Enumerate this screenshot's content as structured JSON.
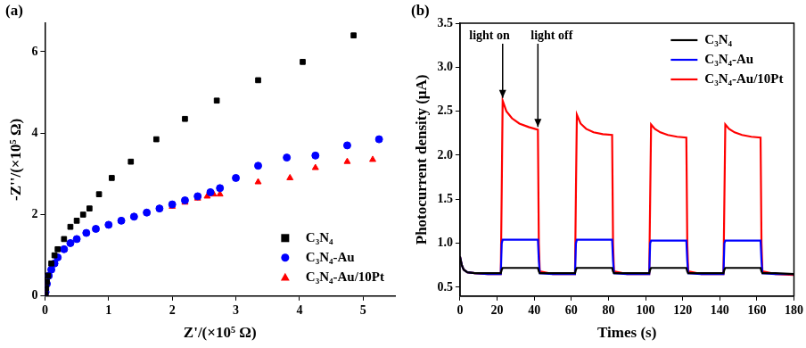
{
  "chart_data": [
    {
      "type": "scatter",
      "title": "(a)",
      "x_label": "Z'/(×10⁵ Ω)",
      "y_label": "-Z''/(×10⁵ Ω)",
      "xlim": [
        0,
        5.5
      ],
      "xticks": [
        0,
        1,
        2,
        3,
        4,
        5
      ],
      "ylim": [
        0,
        6.7
      ],
      "yticks": [
        0,
        2,
        4,
        6
      ],
      "grid": false,
      "legend": "lower right",
      "series": [
        {
          "name": "C₃N₄",
          "color": "#000000",
          "marker": "square",
          "x": [
            0.01,
            0.02,
            0.03,
            0.05,
            0.1,
            0.15,
            0.2,
            0.3,
            0.4,
            0.5,
            0.6,
            0.7,
            0.85,
            1.05,
            1.35,
            1.75,
            2.2,
            2.7,
            3.35,
            4.05,
            4.85
          ],
          "values": [
            0.05,
            0.2,
            0.35,
            0.5,
            0.8,
            1.0,
            1.15,
            1.4,
            1.7,
            1.85,
            2.0,
            2.15,
            2.5,
            2.9,
            3.3,
            3.85,
            4.35,
            4.8,
            5.3,
            5.75,
            6.4
          ]
        },
        {
          "name": "C₃N₄-Au",
          "color": "#0000ff",
          "marker": "circle",
          "x": [
            0.01,
            0.03,
            0.06,
            0.1,
            0.15,
            0.2,
            0.3,
            0.4,
            0.5,
            0.65,
            0.8,
            1.0,
            1.2,
            1.4,
            1.6,
            1.8,
            2.0,
            2.2,
            2.4,
            2.6,
            2.75,
            3.0,
            3.35,
            3.8,
            4.25,
            4.75,
            5.25
          ],
          "values": [
            0.1,
            0.3,
            0.5,
            0.65,
            0.8,
            0.95,
            1.15,
            1.3,
            1.4,
            1.55,
            1.65,
            1.75,
            1.85,
            1.95,
            2.05,
            2.15,
            2.25,
            2.35,
            2.45,
            2.55,
            2.65,
            2.9,
            3.2,
            3.4,
            3.45,
            3.7,
            3.85
          ]
        },
        {
          "name": "C₃N₄-Au/10Pt",
          "color": "#ff0000",
          "marker": "triangle",
          "x": [
            0.01,
            0.03,
            0.06,
            0.1,
            0.15,
            0.2,
            0.3,
            0.4,
            0.5,
            0.65,
            0.8,
            1.0,
            1.2,
            1.4,
            1.6,
            1.8,
            2.0,
            2.2,
            2.4,
            2.55,
            2.65,
            2.75,
            3.35,
            3.85,
            4.25,
            4.75,
            5.15
          ],
          "values": [
            0.08,
            0.3,
            0.5,
            0.65,
            0.8,
            0.95,
            1.15,
            1.3,
            1.4,
            1.55,
            1.65,
            1.75,
            1.85,
            1.95,
            2.05,
            2.15,
            2.2,
            2.3,
            2.4,
            2.45,
            2.5,
            2.5,
            2.8,
            2.9,
            3.15,
            3.3,
            3.35
          ]
        }
      ]
    },
    {
      "type": "line",
      "title": "(b)",
      "x_label": "Times (s)",
      "y_label": "Photocurrent density (μA)",
      "xlim": [
        0,
        180
      ],
      "xticks": [
        0,
        20,
        40,
        60,
        80,
        100,
        120,
        140,
        160,
        180
      ],
      "ylim": [
        0.4,
        3.5
      ],
      "yticks": [
        0.5,
        {
          "value": 1.0,
          "label": "1.0"
        },
        1.5,
        {
          "value": 2.0,
          "label": "2.0"
        },
        2.5,
        {
          "value": 3.0,
          "label": "3.0"
        },
        3.5
      ],
      "grid": false,
      "legend": "upper right",
      "annotations": [
        {
          "text": "light on",
          "x": 23,
          "y": 2.62
        },
        {
          "text": "light off",
          "x": 42,
          "y": 2.29
        }
      ],
      "x": [
        0,
        1,
        2,
        4,
        8,
        15,
        22,
        22.5,
        23,
        25,
        28,
        32,
        37,
        42,
        42.5,
        43,
        50,
        62,
        62.5,
        63,
        65,
        68,
        72,
        77,
        82,
        82.5,
        83,
        90,
        102,
        102.5,
        103,
        105,
        108,
        112,
        117,
        122,
        122.5,
        123,
        130,
        142,
        142.5,
        143,
        145,
        148,
        152,
        157,
        162,
        162.5,
        163,
        170,
        180
      ],
      "series": [
        {
          "name": "C₃N₄",
          "color": "#000000",
          "line_style": "solid",
          "values": [
            0.85,
            0.75,
            0.7,
            0.67,
            0.66,
            0.66,
            0.66,
            0.7,
            0.72,
            0.72,
            0.72,
            0.72,
            0.72,
            0.72,
            0.68,
            0.66,
            0.66,
            0.66,
            0.7,
            0.72,
            0.72,
            0.72,
            0.72,
            0.72,
            0.72,
            0.68,
            0.66,
            0.66,
            0.66,
            0.7,
            0.72,
            0.72,
            0.72,
            0.72,
            0.72,
            0.72,
            0.68,
            0.66,
            0.66,
            0.66,
            0.7,
            0.72,
            0.72,
            0.72,
            0.72,
            0.72,
            0.72,
            0.68,
            0.66,
            0.66,
            0.65
          ]
        },
        {
          "name": "C₃N₄-Au",
          "color": "#0000ff",
          "line_style": "solid",
          "values": [
            0.85,
            0.75,
            0.7,
            0.67,
            0.66,
            0.65,
            0.65,
            1.0,
            1.04,
            1.04,
            1.04,
            1.04,
            1.04,
            1.04,
            0.8,
            0.66,
            0.65,
            0.65,
            1.0,
            1.04,
            1.04,
            1.04,
            1.04,
            1.04,
            1.04,
            0.8,
            0.66,
            0.65,
            0.65,
            1.0,
            1.03,
            1.03,
            1.03,
            1.03,
            1.03,
            1.03,
            0.8,
            0.66,
            0.65,
            0.65,
            1.0,
            1.03,
            1.03,
            1.03,
            1.03,
            1.03,
            1.03,
            0.8,
            0.66,
            0.65,
            0.65
          ]
        },
        {
          "name": "C₃N₄-Au/10Pt",
          "color": "#ff0000",
          "line_style": "solid",
          "values": [
            0.85,
            0.75,
            0.7,
            0.67,
            0.66,
            0.65,
            0.65,
            1.6,
            2.62,
            2.5,
            2.42,
            2.36,
            2.32,
            2.29,
            1.0,
            0.68,
            0.65,
            0.65,
            1.6,
            2.46,
            2.36,
            2.3,
            2.26,
            2.24,
            2.23,
            1.0,
            0.68,
            0.65,
            0.65,
            1.5,
            2.35,
            2.3,
            2.26,
            2.23,
            2.21,
            2.2,
            1.0,
            0.68,
            0.65,
            0.65,
            1.5,
            2.35,
            2.3,
            2.26,
            2.23,
            2.21,
            2.2,
            1.0,
            0.68,
            0.65,
            0.64
          ]
        }
      ]
    }
  ]
}
